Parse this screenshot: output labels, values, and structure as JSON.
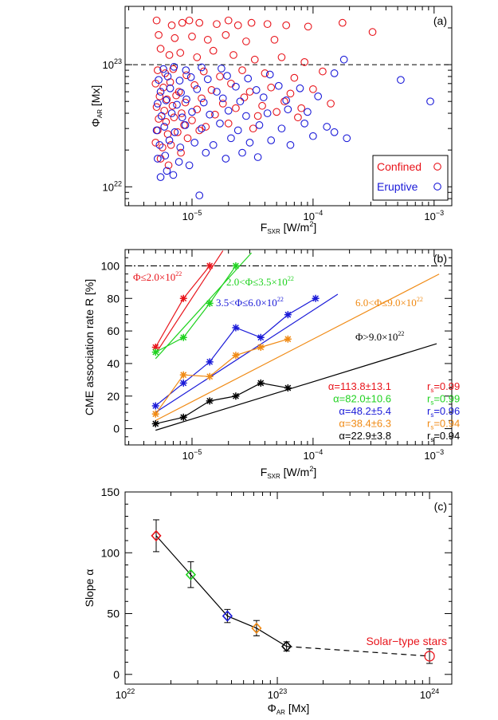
{
  "colors": {
    "confined": "#e8141b",
    "eruptive": "#1a1ad8",
    "green": "#1fd21f",
    "orange": "#f08a14",
    "black": "#000000"
  },
  "chart_data": [
    {
      "panel": "(a)",
      "type": "scatter",
      "xlabel": {
        "main": "F",
        "sub": "SXR",
        "rest": " [W/m",
        "sup": "2",
        "end": "]"
      },
      "ylabel": {
        "main": "Φ",
        "sub": "AR",
        "rest": " [Mx]"
      },
      "xscale": "log",
      "yscale": "log",
      "xlim": [
        2.8e-06,
        0.0014
      ],
      "ylim": [
        7e+21,
        3e+23
      ],
      "xticks": [
        {
          "label": "10",
          "exp": "−5",
          "value": 1e-05
        },
        {
          "label": "10",
          "exp": "−4",
          "value": 0.0001
        },
        {
          "label": "10",
          "exp": "−3",
          "value": 0.001
        }
      ],
      "yticks": [
        {
          "label": "10",
          "exp": "22",
          "value": 1e+22
        },
        {
          "label": "10",
          "exp": "23",
          "value": 1e+23
        }
      ],
      "threshold": 1e+23,
      "legend": {
        "position": "bottom-right",
        "items": [
          {
            "label": "Confined",
            "color": "#e8141b"
          },
          {
            "label": "Eruptive",
            "color": "#1a1ad8"
          }
        ]
      },
      "series": [
        {
          "name": "Confined",
          "color": "#e8141b",
          "points": [
            [
              5.1e-06,
              2.3e+23
            ],
            [
              6.8e-06,
              2.1e+23
            ],
            [
              8.3e-06,
              2.2e+23
            ],
            [
              9.5e-06,
              2.3e+23
            ],
            [
              1.15e-05,
              2.2e+23
            ],
            [
              1.6e-05,
              2.15e+23
            ],
            [
              2e-05,
              2.3e+23
            ],
            [
              2.4e-05,
              2.1e+23
            ],
            [
              3.1e-05,
              2.2e+23
            ],
            [
              4.2e-05,
              2.15e+23
            ],
            [
              6e-05,
              2.1e+23
            ],
            [
              9.1e-05,
              2.05e+23
            ],
            [
              0.000175,
              2.2e+23
            ],
            [
              0.00031,
              1.85e+23
            ],
            [
              5.3e-06,
              1.75e+23
            ],
            [
              7.2e-06,
              1.65e+23
            ],
            [
              1e-05,
              1.7e+23
            ],
            [
              1.35e-05,
              1.6e+23
            ],
            [
              1.9e-05,
              1.75e+23
            ],
            [
              2.8e-05,
              1.55e+23
            ],
            [
              4.8e-05,
              1.6e+23
            ],
            [
              5.5e-06,
              1.35e+23
            ],
            [
              6.5e-06,
              1.2e+23
            ],
            [
              8e-06,
              1.25e+23
            ],
            [
              1.1e-05,
              1.15e+23
            ],
            [
              1.5e-05,
              1.3e+23
            ],
            [
              2.2e-05,
              1.2e+23
            ],
            [
              3.3e-05,
              1.1e+23
            ],
            [
              5.5e-05,
              1.15e+23
            ],
            [
              8.5e-05,
              1.05e+23
            ],
            [
              5.2e-06,
              9e+22
            ],
            [
              6e-06,
              8.5e+22
            ],
            [
              7e-06,
              9.2e+22
            ],
            [
              9e-06,
              8.2e+22
            ],
            [
              1.25e-05,
              8.8e+22
            ],
            [
              1.7e-05,
              8e+22
            ],
            [
              2.6e-05,
              9e+22
            ],
            [
              4e-05,
              8.5e+22
            ],
            [
              7e-05,
              7.8e+22
            ],
            [
              0.00012,
              8.8e+22
            ],
            [
              5e-06,
              7e+22
            ],
            [
              5.8e-06,
              6.5e+22
            ],
            [
              6.6e-06,
              7.2e+22
            ],
            [
              7.8e-06,
              6e+22
            ],
            [
              1.05e-05,
              6.8e+22
            ],
            [
              1.45e-05,
              6.2e+22
            ],
            [
              2.1e-05,
              7e+22
            ],
            [
              3e-05,
              6e+22
            ],
            [
              4.5e-05,
              6.5e+22
            ],
            [
              6.5e-05,
              5.8e+22
            ],
            [
              0.0001,
              6.3e+22
            ],
            [
              5.4e-06,
              5.5e+22
            ],
            [
              6.2e-06,
              5.2e+22
            ],
            [
              7.4e-06,
              5.6e+22
            ],
            [
              8.8e-06,
              4.9e+22
            ],
            [
              1.2e-05,
              5.3e+22
            ],
            [
              1.8e-05,
              4.8e+22
            ],
            [
              2.7e-05,
              5.4e+22
            ],
            [
              3.8e-05,
              4.6e+22
            ],
            [
              5.8e-05,
              5e+22
            ],
            [
              8e-05,
              4.4e+22
            ],
            [
              0.00014,
              4.8e+22
            ],
            [
              5.1e-06,
              4.5e+22
            ],
            [
              5.9e-06,
              4.2e+22
            ],
            [
              6.9e-06,
              4.6e+22
            ],
            [
              8.2e-06,
              4e+22
            ],
            [
              1.1e-05,
              4.3e+22
            ],
            [
              1.55e-05,
              3.9e+22
            ],
            [
              2.3e-05,
              4.4e+22
            ],
            [
              3.5e-05,
              3.8e+22
            ],
            [
              5e-05,
              4.1e+22
            ],
            [
              7.5e-05,
              3.7e+22
            ],
            [
              5.3e-06,
              3.6e+22
            ],
            [
              6.1e-06,
              3.4e+22
            ],
            [
              7.1e-06,
              3.7e+22
            ],
            [
              8.6e-06,
              3.2e+22
            ],
            [
              1e-05,
              3.5e+22
            ],
            [
              1.3e-05,
              3.1e+22
            ],
            [
              2e-05,
              3.3e+22
            ],
            [
              3.2e-05,
              3e+22
            ],
            [
              5.2e-06,
              2.9e+22
            ],
            [
              6.3e-06,
              2.7e+22
            ],
            [
              7.6e-06,
              2.8e+22
            ],
            [
              9.2e-06,
              2.5e+22
            ],
            [
              1.15e-05,
              2.9e+22
            ],
            [
              5e-06,
              2.3e+22
            ],
            [
              5.7e-06,
              2.1e+22
            ],
            [
              6.7e-06,
              2.2e+22
            ],
            [
              8.1e-06,
              1.9e+22
            ],
            [
              5.5e-06,
              1.7e+22
            ],
            [
              6.4e-06,
              1.5e+22
            ]
          ]
        },
        {
          "name": "Eruptive",
          "color": "#1a1ad8",
          "points": [
            [
              5.5e-06,
              1.2e+22
            ],
            [
              6.2e-06,
              1.35e+22
            ],
            [
              7e-06,
              1.25e+22
            ],
            [
              1.15e-05,
              8.5e+21
            ],
            [
              5.2e-06,
              1.7e+22
            ],
            [
              6e-06,
              1.8e+22
            ],
            [
              7.8e-06,
              1.6e+22
            ],
            [
              9.5e-06,
              1.5e+22
            ],
            [
              1.3e-05,
              1.9e+22
            ],
            [
              1.9e-05,
              1.7e+22
            ],
            [
              2.6e-05,
              1.9e+22
            ],
            [
              3.5e-05,
              1.75e+22
            ],
            [
              5.4e-06,
              2.2e+22
            ],
            [
              6.5e-06,
              2.4e+22
            ],
            [
              8e-06,
              2.1e+22
            ],
            [
              1.05e-05,
              2.3e+22
            ],
            [
              1.5e-05,
              2.2e+22
            ],
            [
              2.1e-05,
              2.5e+22
            ],
            [
              3e-05,
              2.3e+22
            ],
            [
              4.5e-05,
              2.4e+22
            ],
            [
              6.5e-05,
              2.2e+22
            ],
            [
              0.0001,
              2.6e+22
            ],
            [
              0.00015,
              2.8e+22
            ],
            [
              0.00019,
              2.5e+22
            ],
            [
              0.00093,
              5e+22
            ],
            [
              0.00053,
              7.5e+22
            ],
            [
              0.00018,
              1.1e+23
            ],
            [
              0.00015,
              8.5e+22
            ],
            [
              5.1e-06,
              2.9e+22
            ],
            [
              5.9e-06,
              3.1e+22
            ],
            [
              7.2e-06,
              2.8e+22
            ],
            [
              8.8e-06,
              3.2e+22
            ],
            [
              1.2e-05,
              3e+22
            ],
            [
              1.7e-05,
              3.3e+22
            ],
            [
              2.4e-05,
              2.9e+22
            ],
            [
              3.6e-05,
              3.2e+22
            ],
            [
              5.5e-05,
              3e+22
            ],
            [
              8.5e-05,
              3.3e+22
            ],
            [
              0.00013,
              3.1e+22
            ],
            [
              5.6e-06,
              3.8e+22
            ],
            [
              6.8e-06,
              4e+22
            ],
            [
              8.3e-06,
              3.7e+22
            ],
            [
              1e-05,
              4.1e+22
            ],
            [
              1.4e-05,
              3.9e+22
            ],
            [
              2e-05,
              4.2e+22
            ],
            [
              2.8e-05,
              3.8e+22
            ],
            [
              4.2e-05,
              4e+22
            ],
            [
              6.2e-05,
              4.3e+22
            ],
            [
              9e-05,
              4.1e+22
            ],
            [
              5.2e-06,
              4.8e+22
            ],
            [
              6.1e-06,
              5.1e+22
            ],
            [
              7.5e-06,
              4.7e+22
            ],
            [
              9e-06,
              5.2e+22
            ],
            [
              1.25e-05,
              4.9e+22
            ],
            [
              1.8e-05,
              5.3e+22
            ],
            [
              2.5e-05,
              5e+22
            ],
            [
              3.9e-05,
              5.4e+22
            ],
            [
              6e-05,
              5.1e+22
            ],
            [
              0.00011,
              5.5e+22
            ],
            [
              5.5e-06,
              6e+22
            ],
            [
              6.6e-06,
              6.4e+22
            ],
            [
              8.1e-06,
              5.9e+22
            ],
            [
              1.1e-05,
              6.3e+22
            ],
            [
              1.6e-05,
              6e+22
            ],
            [
              2.3e-05,
              6.6e+22
            ],
            [
              3.4e-05,
              6.2e+22
            ],
            [
              5.2e-05,
              6.7e+22
            ],
            [
              7.8e-05,
              6.4e+22
            ],
            [
              5.3e-06,
              7.5e+22
            ],
            [
              6.3e-06,
              8e+22
            ],
            [
              7.9e-06,
              7.4e+22
            ],
            [
              9.8e-06,
              7.9e+22
            ],
            [
              1.35e-05,
              7.6e+22
            ],
            [
              1.95e-05,
              8.1e+22
            ],
            [
              2.9e-05,
              7.7e+22
            ],
            [
              4.4e-05,
              8.3e+22
            ],
            [
              5.8e-06,
              9.2e+22
            ],
            [
              7.1e-06,
              9.6e+22
            ],
            [
              8.9e-06,
              9e+22
            ],
            [
              1.2e-05,
              9.5e+22
            ],
            [
              1.75e-05,
              9.3e+22
            ]
          ]
        }
      ]
    },
    {
      "panel": "(b)",
      "type": "line",
      "xlabel": {
        "main": "F",
        "sub": "SXR",
        "rest": " [W/m",
        "sup": "2",
        "end": "]"
      },
      "ylabel": "CME association rate R [%]",
      "xscale": "log",
      "xlim": [
        2.8e-06,
        0.0014
      ],
      "ylim": [
        -10,
        110
      ],
      "xticks": [
        {
          "label": "10",
          "exp": "−5",
          "value": 1e-05
        },
        {
          "label": "10",
          "exp": "−4",
          "value": 0.0001
        },
        {
          "label": "10",
          "exp": "−3",
          "value": 0.001
        }
      ],
      "yticks": [
        0,
        20,
        40,
        60,
        80,
        100
      ],
      "reference_line": 100,
      "series": [
        {
          "label_html": "Φ≤2.0×10",
          "label_exp": "22",
          "color": "#e8141b",
          "alpha": 113.8,
          "x": [
            5e-06,
            8.5e-06,
            1.4e-05
          ],
          "y": [
            50,
            80,
            100
          ],
          "fit_end": 1.8e-05
        },
        {
          "label_html": "2.0<Φ≤3.5×10",
          "label_exp": "22",
          "color": "#1fd21f",
          "alpha": 82.0,
          "x": [
            5e-06,
            8.5e-06,
            1.4e-05,
            2.3e-05
          ],
          "y": [
            47,
            56,
            77,
            100
          ],
          "fit_end": 3.1e-05
        },
        {
          "label_html": "3.5<Φ≤6.0×10",
          "label_exp": "22",
          "color": "#1a1ad8",
          "alpha": 48.2,
          "x": [
            5e-06,
            8.5e-06,
            1.4e-05,
            2.3e-05,
            3.7e-05,
            6.2e-05,
            0.000105
          ],
          "y": [
            14,
            28,
            41,
            62,
            56,
            70,
            80
          ],
          "fit_end": 0.00016
        },
        {
          "label_html": "6.0<Φ≤9.0×10",
          "label_exp": "22",
          "color": "#f08a14",
          "alpha": 38.4,
          "x": [
            5e-06,
            8.5e-06,
            1.4e-05,
            2.3e-05,
            3.7e-05,
            6.2e-05
          ],
          "y": [
            9,
            33,
            32,
            45,
            50,
            55
          ],
          "fit_end": 0.0011
        },
        {
          "label_html": "Φ>9.0×10",
          "label_exp": "22",
          "color": "#000000",
          "alpha": 22.9,
          "x": [
            5e-06,
            8.5e-06,
            1.4e-05,
            2.3e-05,
            3.7e-05,
            6.2e-05
          ],
          "y": [
            3,
            7,
            17,
            20,
            28,
            25
          ],
          "fit_end": 0.00105
        }
      ],
      "fit_stats": [
        {
          "alpha": "α=113.8±13.1",
          "r": "0.99",
          "color": "#e8141b"
        },
        {
          "alpha": "α=82.0±10.6",
          "r": "0.99",
          "color": "#1fd21f"
        },
        {
          "alpha": "α=48.2±5.4",
          "r": "0.96",
          "color": "#1a1ad8"
        },
        {
          "alpha": "α=38.4±6.3",
          "r": "0.94",
          "color": "#f08a14"
        },
        {
          "alpha": "α=22.9±3.8",
          "r": "0.94",
          "color": "#000000"
        }
      ],
      "r_prefix": "r",
      "r_sub": "s",
      "r_eq": "="
    },
    {
      "panel": "(c)",
      "type": "scatter",
      "xlabel": {
        "main": "Φ",
        "sub": "AR",
        "rest": " [Mx]"
      },
      "ylabel": "Slope α",
      "xscale": "log",
      "xlim": [
        1e+22,
        1.4e+24
      ],
      "ylim": [
        -8,
        150
      ],
      "xticks": [
        {
          "label": "10",
          "exp": "22",
          "value": 1e+22
        },
        {
          "label": "10",
          "exp": "23",
          "value": 1e+23
        },
        {
          "label": "10",
          "exp": "24",
          "value": 1e+24
        }
      ],
      "yticks": [
        0,
        50,
        100,
        150
      ],
      "points": [
        {
          "x": 1.6e+22,
          "y": 114,
          "err": 13.1,
          "color": "#e8141b"
        },
        {
          "x": 2.7e+22,
          "y": 82,
          "err": 10.6,
          "color": "#1fd21f"
        },
        {
          "x": 4.7e+22,
          "y": 48,
          "err": 5.4,
          "color": "#1a1ad8"
        },
        {
          "x": 7.3e+22,
          "y": 38,
          "err": 6.3,
          "color": "#f08a14"
        },
        {
          "x": 1.15e+23,
          "y": 23,
          "err": 3.8,
          "color": "#000000"
        }
      ],
      "star_point": {
        "x": 1e+24,
        "y": 15,
        "err": 6,
        "color": "#e8141b",
        "label": "Solar−type stars"
      }
    }
  ]
}
